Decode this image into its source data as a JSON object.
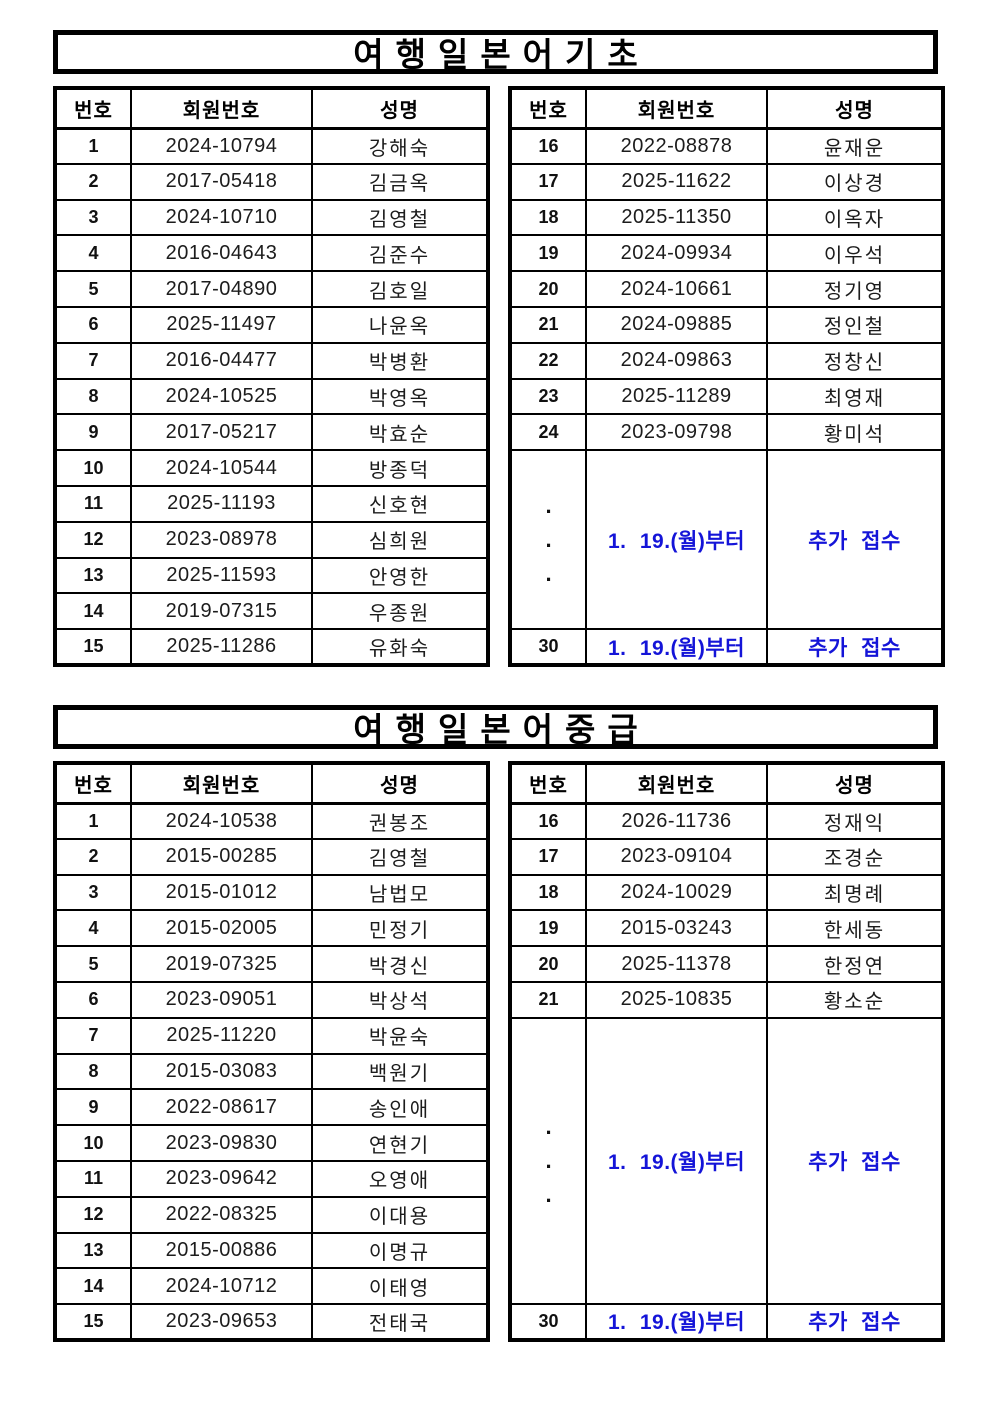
{
  "colors": {
    "accent_blue": "#1414d8",
    "border": "#000000"
  },
  "sections": [
    {
      "title": "여행일본어기초",
      "columns": [
        "번호",
        "회원번호",
        "성명"
      ],
      "left_rows": [
        {
          "no": "1",
          "member_id": "2024-10794",
          "name": "강해숙"
        },
        {
          "no": "2",
          "member_id": "2017-05418",
          "name": "김금옥"
        },
        {
          "no": "3",
          "member_id": "2024-10710",
          "name": "김영철"
        },
        {
          "no": "4",
          "member_id": "2016-04643",
          "name": "김준수"
        },
        {
          "no": "5",
          "member_id": "2017-04890",
          "name": "김호일"
        },
        {
          "no": "6",
          "member_id": "2025-11497",
          "name": "나윤옥"
        },
        {
          "no": "7",
          "member_id": "2016-04477",
          "name": "박병환"
        },
        {
          "no": "8",
          "member_id": "2024-10525",
          "name": "박영옥"
        },
        {
          "no": "9",
          "member_id": "2017-05217",
          "name": "박효순"
        },
        {
          "no": "10",
          "member_id": "2024-10544",
          "name": "방종덕"
        },
        {
          "no": "11",
          "member_id": "2025-11193",
          "name": "신호현"
        },
        {
          "no": "12",
          "member_id": "2023-08978",
          "name": "심희원"
        },
        {
          "no": "13",
          "member_id": "2025-11593",
          "name": "안영한"
        },
        {
          "no": "14",
          "member_id": "2019-07315",
          "name": "우종원"
        },
        {
          "no": "15",
          "member_id": "2025-11286",
          "name": "유화숙"
        }
      ],
      "right_rows": [
        {
          "no": "16",
          "member_id": "2022-08878",
          "name": "윤재운"
        },
        {
          "no": "17",
          "member_id": "2025-11622",
          "name": "이상경"
        },
        {
          "no": "18",
          "member_id": "2025-11350",
          "name": "이옥자"
        },
        {
          "no": "19",
          "member_id": "2024-09934",
          "name": "이우석"
        },
        {
          "no": "20",
          "member_id": "2024-10661",
          "name": "정기영"
        },
        {
          "no": "21",
          "member_id": "2024-09885",
          "name": "정인철"
        },
        {
          "no": "22",
          "member_id": "2024-09863",
          "name": "정창신"
        },
        {
          "no": "23",
          "member_id": "2025-11289",
          "name": "최영재"
        },
        {
          "no": "24",
          "member_id": "2023-09798",
          "name": "황미석"
        }
      ],
      "extra": {
        "dots": [
          ".",
          ".",
          "."
        ],
        "member_id": "1. 19.(월)부터",
        "name": "추가 접수"
      },
      "last_row": {
        "no": "30",
        "member_id": "1. 19.(월)부터",
        "name": "추가 접수"
      }
    },
    {
      "title": "여행일본어중급",
      "columns": [
        "번호",
        "회원번호",
        "성명"
      ],
      "left_rows": [
        {
          "no": "1",
          "member_id": "2024-10538",
          "name": "권봉조"
        },
        {
          "no": "2",
          "member_id": "2015-00285",
          "name": "김영철"
        },
        {
          "no": "3",
          "member_id": "2015-01012",
          "name": "남법모"
        },
        {
          "no": "4",
          "member_id": "2015-02005",
          "name": "민정기"
        },
        {
          "no": "5",
          "member_id": "2019-07325",
          "name": "박경신"
        },
        {
          "no": "6",
          "member_id": "2023-09051",
          "name": "박상석"
        },
        {
          "no": "7",
          "member_id": "2025-11220",
          "name": "박윤숙"
        },
        {
          "no": "8",
          "member_id": "2015-03083",
          "name": "백원기"
        },
        {
          "no": "9",
          "member_id": "2022-08617",
          "name": "송인애"
        },
        {
          "no": "10",
          "member_id": "2023-09830",
          "name": "연현기"
        },
        {
          "no": "11",
          "member_id": "2023-09642",
          "name": "오영애"
        },
        {
          "no": "12",
          "member_id": "2022-08325",
          "name": "이대용"
        },
        {
          "no": "13",
          "member_id": "2015-00886",
          "name": "이명규"
        },
        {
          "no": "14",
          "member_id": "2024-10712",
          "name": "이태영"
        },
        {
          "no": "15",
          "member_id": "2023-09653",
          "name": "전태국"
        }
      ],
      "right_rows": [
        {
          "no": "16",
          "member_id": "2026-11736",
          "name": "정재익"
        },
        {
          "no": "17",
          "member_id": "2023-09104",
          "name": "조경순"
        },
        {
          "no": "18",
          "member_id": "2024-10029",
          "name": "최명례"
        },
        {
          "no": "19",
          "member_id": "2015-03243",
          "name": "한세동"
        },
        {
          "no": "20",
          "member_id": "2025-11378",
          "name": "한정연"
        },
        {
          "no": "21",
          "member_id": "2025-10835",
          "name": "황소순"
        }
      ],
      "extra": {
        "dots": [
          ".",
          ".",
          "."
        ],
        "member_id": "1. 19.(월)부터",
        "name": "추가 접수"
      },
      "last_row": {
        "no": "30",
        "member_id": "1. 19.(월)부터",
        "name": "추가 접수"
      }
    }
  ]
}
